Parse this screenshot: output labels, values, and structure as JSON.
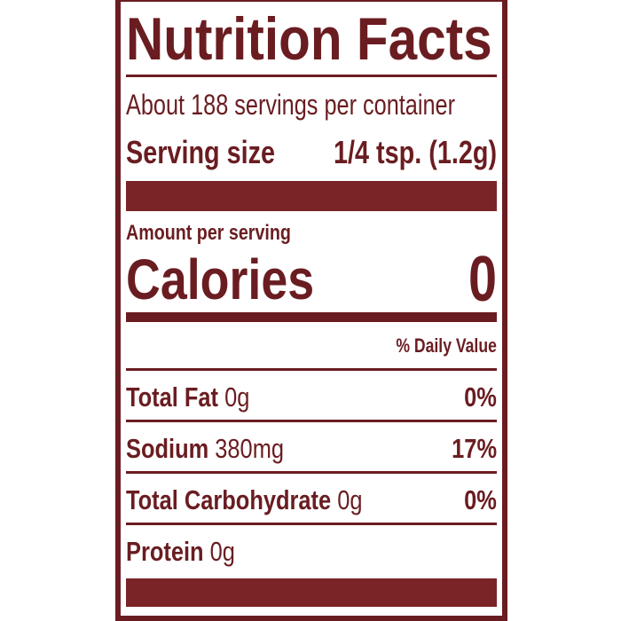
{
  "label": {
    "title": "Nutrition Facts",
    "servings_per_container": "About 188 servings per container",
    "serving_size_label": "Serving size",
    "serving_size_value": "1/4 tsp. (1.2g)",
    "amount_per_serving": "Amount per serving",
    "calories_label": "Calories",
    "calories_value": "0",
    "daily_value_header": "% Daily Value",
    "nutrients": [
      {
        "name": "Total Fat",
        "amount": "0g",
        "dv": "0%"
      },
      {
        "name": "Sodium",
        "amount": "380mg",
        "dv": "17%"
      },
      {
        "name": "Total Carbohydrate",
        "amount": "0g",
        "dv": "0%"
      },
      {
        "name": "Protein",
        "amount": "0g",
        "dv": ""
      }
    ]
  },
  "colors": {
    "ink": "#6a1d21",
    "background": "#ffffff"
  }
}
